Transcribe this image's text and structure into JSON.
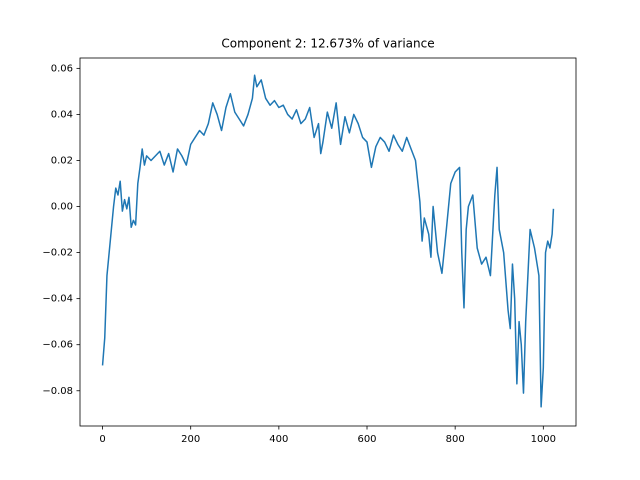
{
  "chart_data": {
    "type": "line",
    "title": "Component 2: 12.673% of variance",
    "x": [
      0,
      5,
      10,
      15,
      20,
      25,
      30,
      35,
      40,
      45,
      50,
      55,
      60,
      65,
      70,
      75,
      80,
      85,
      90,
      95,
      100,
      110,
      120,
      130,
      140,
      150,
      160,
      170,
      180,
      190,
      200,
      210,
      220,
      230,
      240,
      250,
      260,
      270,
      280,
      290,
      300,
      310,
      320,
      330,
      340,
      345,
      350,
      360,
      370,
      380,
      390,
      400,
      410,
      420,
      430,
      440,
      450,
      460,
      470,
      480,
      490,
      495,
      500,
      510,
      520,
      530,
      540,
      550,
      560,
      570,
      580,
      590,
      600,
      610,
      620,
      630,
      640,
      650,
      660,
      670,
      680,
      690,
      700,
      710,
      720,
      725,
      730,
      740,
      745,
      750,
      760,
      770,
      780,
      790,
      800,
      810,
      815,
      820,
      825,
      830,
      840,
      850,
      860,
      870,
      880,
      890,
      895,
      900,
      910,
      920,
      925,
      930,
      935,
      940,
      945,
      950,
      955,
      960,
      970,
      980,
      990,
      995,
      1000,
      1005,
      1010,
      1015,
      1020,
      1023
    ],
    "series": [
      {
        "color": "#1f77b4",
        "values": [
          -0.069,
          -0.057,
          -0.03,
          -0.02,
          -0.01,
          0.0,
          0.008,
          0.005,
          0.011,
          -0.002,
          0.003,
          -0.001,
          0.004,
          -0.009,
          -0.006,
          -0.008,
          0.01,
          0.017,
          0.025,
          0.018,
          0.022,
          0.02,
          0.022,
          0.024,
          0.018,
          0.023,
          0.015,
          0.025,
          0.022,
          0.018,
          0.027,
          0.03,
          0.033,
          0.031,
          0.036,
          0.045,
          0.04,
          0.033,
          0.043,
          0.049,
          0.041,
          0.038,
          0.035,
          0.04,
          0.047,
          0.057,
          0.052,
          0.055,
          0.047,
          0.044,
          0.046,
          0.043,
          0.044,
          0.04,
          0.038,
          0.042,
          0.036,
          0.038,
          0.043,
          0.03,
          0.036,
          0.023,
          0.028,
          0.041,
          0.034,
          0.045,
          0.027,
          0.039,
          0.032,
          0.04,
          0.036,
          0.03,
          0.028,
          0.017,
          0.026,
          0.03,
          0.028,
          0.024,
          0.031,
          0.027,
          0.024,
          0.03,
          0.025,
          0.02,
          0.002,
          -0.015,
          -0.005,
          -0.012,
          -0.022,
          0.0,
          -0.02,
          -0.029,
          -0.01,
          0.01,
          0.015,
          0.017,
          -0.02,
          -0.044,
          -0.01,
          0.0,
          0.005,
          -0.018,
          -0.025,
          -0.022,
          -0.03,
          0.005,
          0.017,
          -0.01,
          -0.02,
          -0.045,
          -0.053,
          -0.025,
          -0.04,
          -0.077,
          -0.05,
          -0.06,
          -0.081,
          -0.05,
          -0.01,
          -0.018,
          -0.03,
          -0.087,
          -0.07,
          -0.02,
          -0.015,
          -0.018,
          -0.012,
          -0.001
        ]
      }
    ],
    "xlim": [
      -51.15,
      1074.15
    ],
    "xticks": [
      0,
      200,
      400,
      600,
      800,
      1000
    ],
    "ylim": [
      -0.0953,
      0.0645
    ],
    "yticks": [
      {
        "value": -0.08,
        "label": "−0.08"
      },
      {
        "value": -0.06,
        "label": "−0.06"
      },
      {
        "value": -0.04,
        "label": "−0.04"
      },
      {
        "value": -0.02,
        "label": "−0.02"
      },
      {
        "value": 0,
        "label": "0.00"
      },
      {
        "value": 0.02,
        "label": "0.02"
      },
      {
        "value": 0.04,
        "label": "0.04"
      },
      {
        "value": 0.06,
        "label": "0.06"
      }
    ]
  }
}
